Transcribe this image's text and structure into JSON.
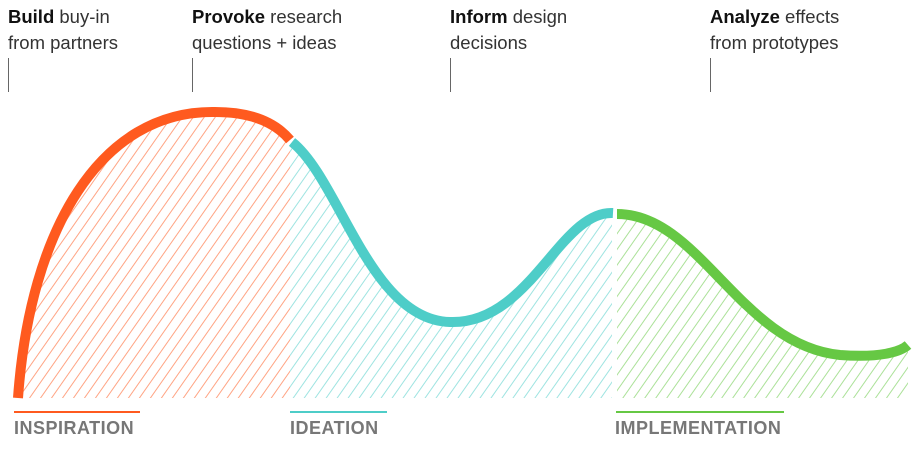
{
  "annotations": [
    {
      "bold": "Build",
      "rest": " buy-in",
      "line2": "from partners"
    },
    {
      "bold": "Provoke",
      "rest": " research",
      "line2": "questions + ideas"
    },
    {
      "bold": "Inform",
      "rest": " design",
      "line2": "decisions"
    },
    {
      "bold": "Analyze",
      "rest": " effects",
      "line2": "from prototypes"
    }
  ],
  "phases": [
    {
      "label": "INSPIRATION",
      "color": "#ff5a1f"
    },
    {
      "label": "IDEATION",
      "color": "#4ecdc8"
    },
    {
      "label": "IMPLEMENTATION",
      "color": "#66c844"
    }
  ],
  "colors": {
    "tick": "#666666",
    "label": "#777777"
  }
}
